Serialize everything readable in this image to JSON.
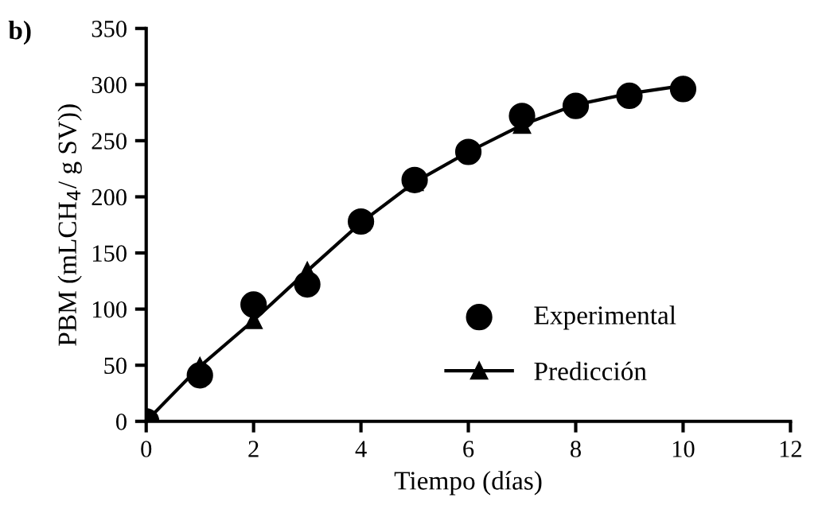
{
  "chart_data": {
    "type": "scatter",
    "xlabel": "Tiempo (días)",
    "ylabel": "PBM (mLCH$_{4}$/ g SV))",
    "annotations": [
      "b)"
    ],
    "xlim": [
      0,
      12
    ],
    "xticks": [
      0,
      2,
      4,
      6,
      8,
      10,
      12
    ],
    "ylim": [
      0,
      350
    ],
    "yticks": [
      0,
      50,
      100,
      150,
      200,
      250,
      300,
      350
    ],
    "grid": false,
    "legend": "bottom right",
    "series": [
      {
        "name": "Experimental",
        "marker": "circle",
        "color": "#000000",
        "x": [
          0,
          1,
          2,
          3,
          4,
          5,
          6,
          7,
          8,
          9,
          10
        ],
        "values": [
          0,
          41,
          104,
          122,
          178,
          215,
          240,
          272,
          281,
          290,
          296
        ]
      },
      {
        "name": "Predicción",
        "type": "line",
        "marker": "triangle",
        "line_style": "solid",
        "color": "#000000",
        "x": [
          0,
          1,
          2,
          3,
          4,
          5,
          6,
          7,
          8,
          9,
          10
        ],
        "values": [
          0,
          49,
          90,
          134,
          177,
          213,
          240,
          264,
          282,
          292,
          299
        ]
      }
    ]
  }
}
